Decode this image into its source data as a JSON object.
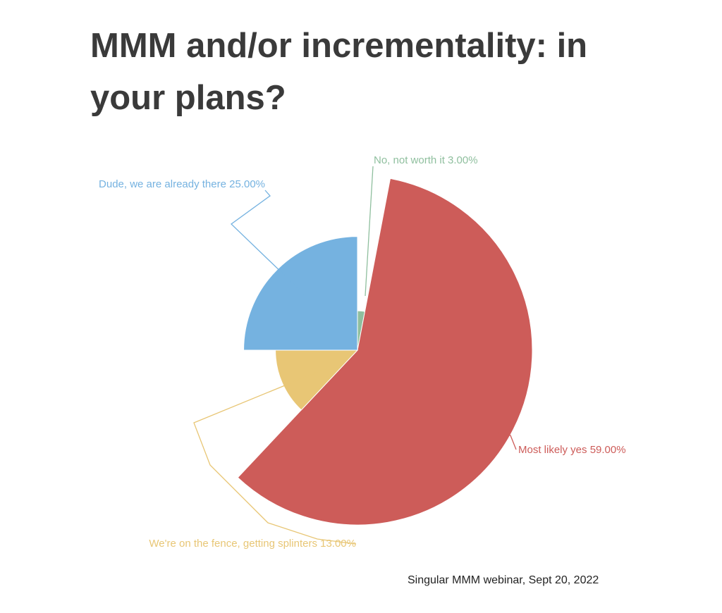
{
  "title": "MMM and/or incrementality: in your plans?",
  "source": "Singular MMM webinar, Sept 20, 2022",
  "chart_data": {
    "type": "pie",
    "variant": "rose",
    "slices": [
      {
        "label": "No, not worth it",
        "value": 3.0,
        "value_label": "3.00%",
        "color": "#8fbf9e"
      },
      {
        "label": "Most likely yes",
        "value": 59.0,
        "value_label": "59.00%",
        "color": "#cd5c59"
      },
      {
        "label": "We're on the fence, getting splinters",
        "value": 13.0,
        "value_label": "13.00%",
        "color": "#e8c675"
      },
      {
        "label": "Dude, we are already there",
        "value": 25.0,
        "value_label": "25.00%",
        "color": "#75b2e0"
      }
    ]
  }
}
